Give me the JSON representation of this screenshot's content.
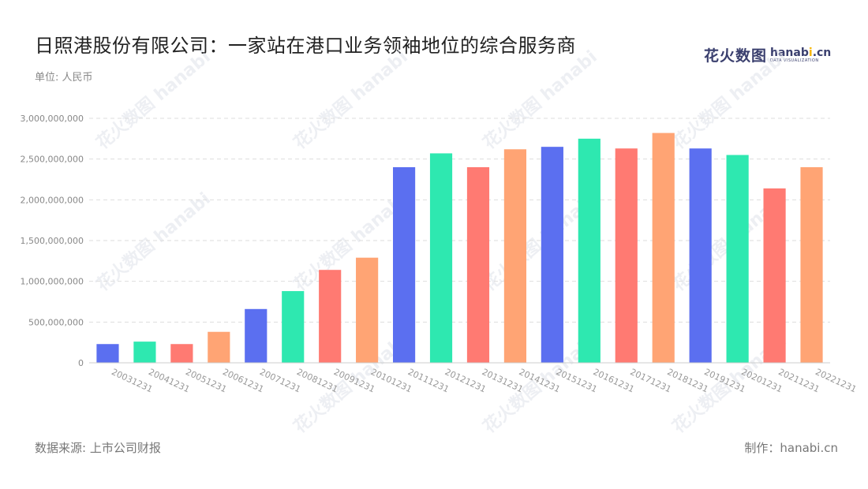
{
  "title": "日照港股份有限公司：一家站在港口业务领袖地位的综合服务商",
  "unit": "单位: 人民币",
  "logo": {
    "main": "花火数图",
    "en_prefix": "hanab",
    "en_dot": "i",
    "en_suffix": ".cn",
    "sub": "DATA VISUALIZATION"
  },
  "source": "数据来源: 上市公司财报",
  "maker": "制作：hanabi.cn",
  "colors": [
    "#5b6ff0",
    "#2ee8b0",
    "#ff7a72",
    "#ffa474"
  ],
  "chart_data": {
    "type": "bar",
    "title": "日照港股份有限公司：一家站在港口业务领袖地位的综合服务商",
    "ylabel": "单位: 人民币",
    "xlabel": "",
    "ylim": [
      0,
      3000000000
    ],
    "yticks": [
      0,
      500000000,
      1000000000,
      1500000000,
      2000000000,
      2500000000,
      3000000000
    ],
    "ytick_labels": [
      "0",
      "500,000,000",
      "1,000,000,000",
      "1,500,000,000",
      "2,000,000,000",
      "2,500,000,000",
      "3,000,000,000"
    ],
    "grid": true,
    "categories": [
      "20031231",
      "20041231",
      "20051231",
      "20061231",
      "20071231",
      "20081231",
      "20091231",
      "20101231",
      "20111231",
      "20121231",
      "20131231",
      "20141231",
      "20151231",
      "20161231",
      "20171231",
      "20181231",
      "20191231",
      "20201231",
      "20211231",
      "20221231"
    ],
    "values": [
      230000000,
      260000000,
      230000000,
      380000000,
      660000000,
      880000000,
      1140000000,
      1290000000,
      2400000000,
      2570000000,
      2400000000,
      2620000000,
      2650000000,
      2750000000,
      2630000000,
      2820000000,
      2630000000,
      2550000000,
      2140000000,
      2400000000
    ]
  }
}
